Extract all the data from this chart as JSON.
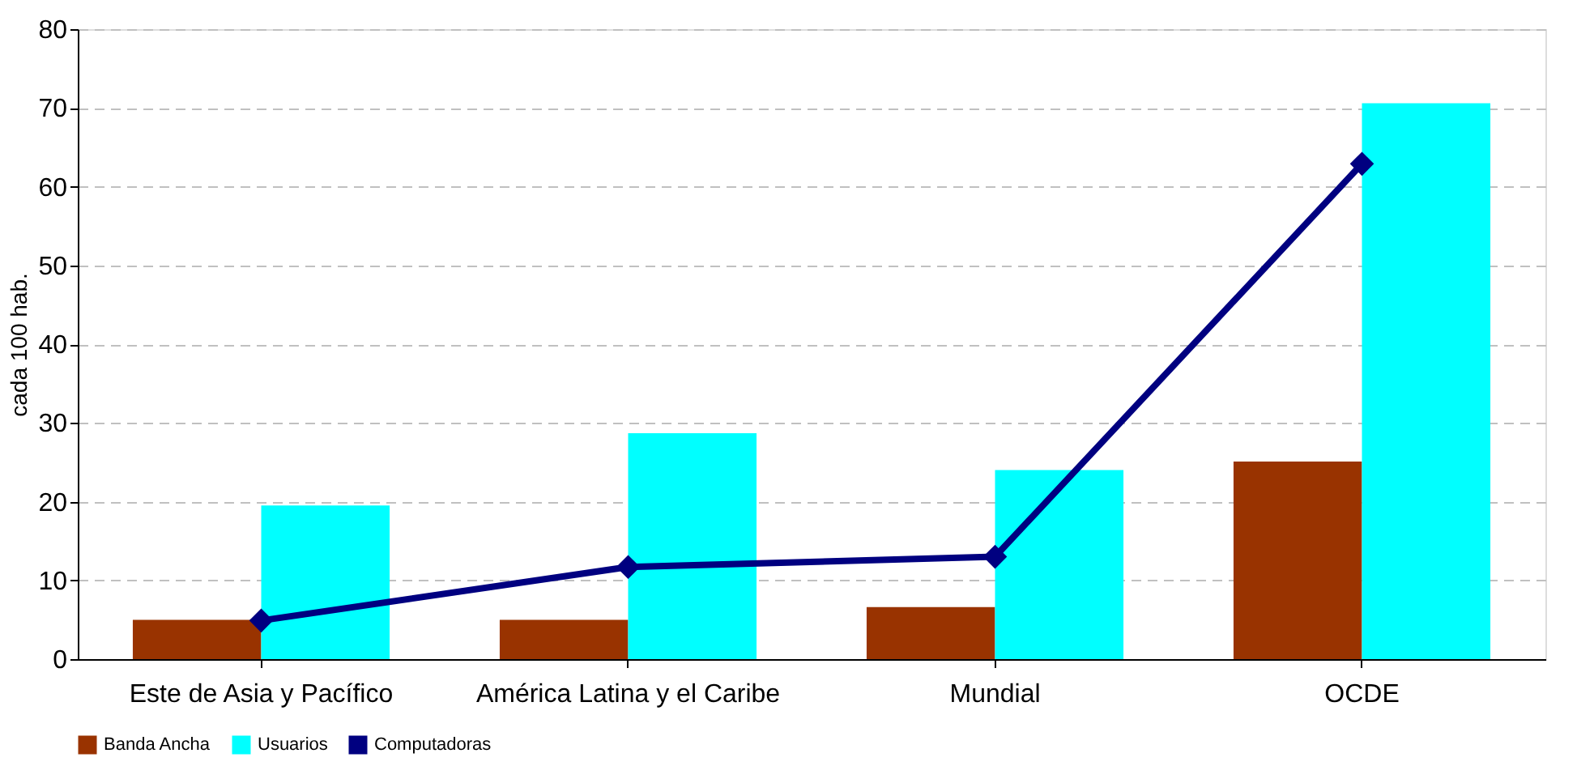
{
  "chart_data": {
    "type": "bar",
    "ylabel": "cada 100 hab.",
    "categories": [
      "Este de Asia y Pacífico",
      "América Latina y el Caribe",
      "Mundial",
      "OCDE"
    ],
    "series": [
      {
        "name": "Banda Ancha",
        "color": "#993300",
        "values": [
          5.0,
          5.0,
          6.6,
          25.1
        ]
      },
      {
        "name": "Usuarios",
        "color": "#00ffff",
        "values": [
          19.5,
          28.7,
          24.0,
          70.6
        ]
      },
      {
        "name": "Computadoras",
        "type": "line",
        "color": "#000080",
        "values": [
          4.9,
          11.7,
          13.0,
          62.9
        ]
      }
    ],
    "ylim": [
      0,
      80
    ],
    "yticks": [
      0,
      10,
      20,
      30,
      40,
      50,
      60,
      70,
      80
    ],
    "grid": "y",
    "legend": "bottom",
    "marker": "diamond",
    "line_style": "solid"
  }
}
